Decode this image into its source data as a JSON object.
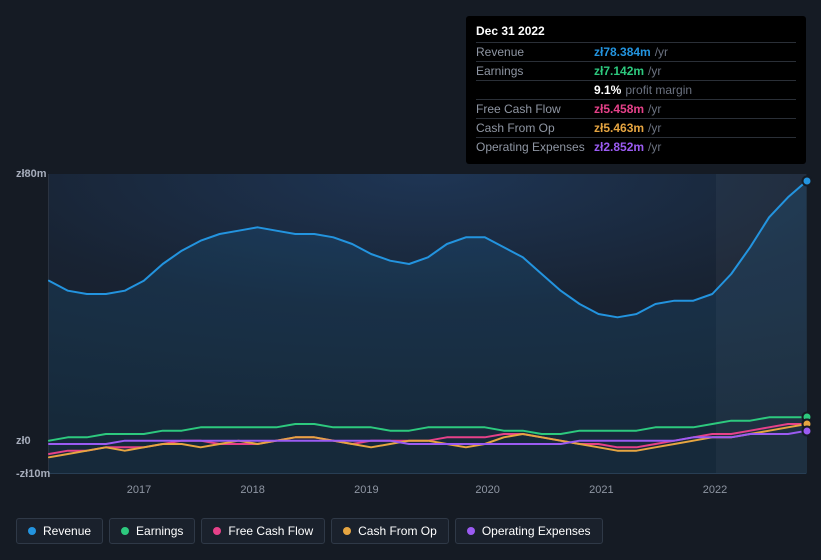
{
  "bg_color": "#151b24",
  "tooltip": {
    "title": "Dec 31 2022",
    "rows": [
      {
        "label": "Revenue",
        "value": "zł78.384m",
        "unit": "/yr",
        "color": "#2394df"
      },
      {
        "label": "Earnings",
        "value": "zł7.142m",
        "unit": "/yr",
        "color": "#2dc97e"
      },
      {
        "label": "",
        "pm_value": "9.1%",
        "pm_label": "profit margin"
      },
      {
        "label": "Free Cash Flow",
        "value": "zł5.458m",
        "unit": "/yr",
        "color": "#e64189"
      },
      {
        "label": "Cash From Op",
        "value": "zł5.463m",
        "unit": "/yr",
        "color": "#e6a541"
      },
      {
        "label": "Operating Expenses",
        "value": "zł2.852m",
        "unit": "/yr",
        "color": "#9b5bf2"
      }
    ],
    "label_color": "#8f96a3",
    "unit_color": "#6b7280",
    "border_color": "#2a2f37",
    "bg": "#000000"
  },
  "chart": {
    "type": "line",
    "ylim": [
      -10,
      80
    ],
    "yticks": [
      {
        "v": 80,
        "label": "zł80m"
      },
      {
        "v": 0,
        "label": "zł0"
      },
      {
        "v": -10,
        "label": "-zł10m"
      }
    ],
    "xaxis_labels": [
      "2017",
      "2018",
      "2019",
      "2020",
      "2021",
      "2022"
    ],
    "xaxis_positions": [
      0.12,
      0.27,
      0.42,
      0.58,
      0.73,
      0.88
    ],
    "highlight": {
      "start": 0.88,
      "end": 1.0
    },
    "plot_bg_gradient": [
      "#1e3554",
      "#182333",
      "#151b24"
    ],
    "grid_color": "#2a3341",
    "label_color": "#a6adbb",
    "line_width": 2,
    "series": [
      {
        "name": "Revenue",
        "color": "#2394df",
        "area": true,
        "area_opacity": 0.12,
        "values": [
          48,
          45,
          44,
          44,
          45,
          48,
          53,
          57,
          60,
          62,
          63,
          64,
          63,
          62,
          62,
          61,
          59,
          56,
          54,
          53,
          55,
          59,
          61,
          61,
          58,
          55,
          50,
          45,
          41,
          38,
          37,
          38,
          41,
          42,
          42,
          44,
          50,
          58,
          67,
          73,
          78
        ]
      },
      {
        "name": "Earnings",
        "color": "#2dc97e",
        "area": false,
        "values": [
          0,
          1,
          1,
          2,
          2,
          2,
          3,
          3,
          4,
          4,
          4,
          4,
          4,
          5,
          5,
          4,
          4,
          4,
          3,
          3,
          4,
          4,
          4,
          4,
          3,
          3,
          2,
          2,
          3,
          3,
          3,
          3,
          4,
          4,
          4,
          5,
          6,
          6,
          7,
          7,
          7
        ]
      },
      {
        "name": "Free Cash Flow",
        "color": "#e64189",
        "area": false,
        "values": [
          -4,
          -3,
          -3,
          -2,
          -2,
          -2,
          -1,
          0,
          0,
          -1,
          -1,
          -1,
          0,
          1,
          1,
          0,
          -1,
          0,
          0,
          0,
          0,
          1,
          1,
          1,
          2,
          2,
          1,
          0,
          -1,
          -1,
          -2,
          -2,
          -1,
          0,
          1,
          2,
          2,
          3,
          4,
          5,
          5
        ]
      },
      {
        "name": "Cash From Op",
        "color": "#e6a541",
        "area": false,
        "values": [
          -5,
          -4,
          -3,
          -2,
          -3,
          -2,
          -1,
          -1,
          -2,
          -1,
          0,
          -1,
          0,
          1,
          1,
          0,
          -1,
          -2,
          -1,
          0,
          0,
          -1,
          -2,
          -1,
          1,
          2,
          1,
          0,
          -1,
          -2,
          -3,
          -3,
          -2,
          -1,
          0,
          1,
          1,
          2,
          3,
          4,
          5
        ]
      },
      {
        "name": "Operating Expenses",
        "color": "#9b5bf2",
        "area": false,
        "values": [
          -1,
          -1,
          -1,
          -1,
          0,
          0,
          0,
          0,
          0,
          0,
          0,
          0,
          0,
          0,
          0,
          0,
          0,
          0,
          0,
          -1,
          -1,
          -1,
          -1,
          -1,
          -1,
          -1,
          -1,
          -1,
          0,
          0,
          0,
          0,
          0,
          0,
          1,
          1,
          1,
          2,
          2,
          2,
          3
        ]
      }
    ]
  },
  "legend": {
    "border_color": "#2f3947",
    "bg": "#1a212c",
    "text_color": "#ffffff"
  }
}
